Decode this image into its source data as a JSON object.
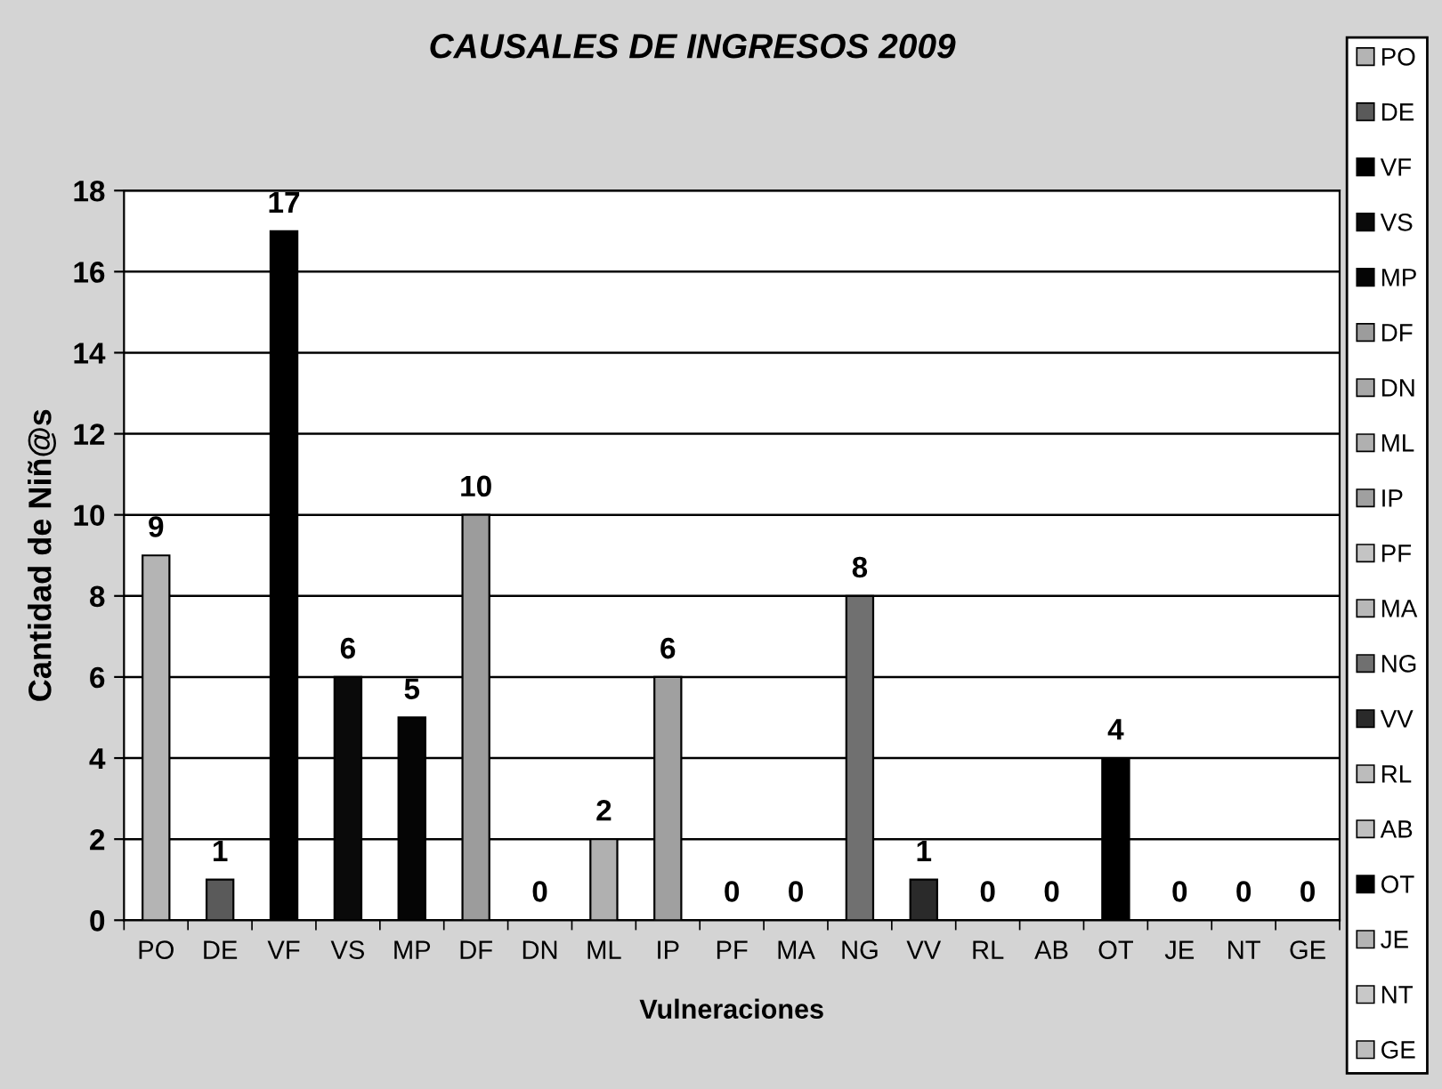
{
  "chart_data": {
    "type": "bar",
    "title": "CAUSALES DE INGRESOS 2009",
    "xlabel": "Vulneraciones",
    "ylabel": "Cantidad de Niñ@s",
    "categories": [
      "PO",
      "DE",
      "VF",
      "VS",
      "MP",
      "DF",
      "DN",
      "ML",
      "IP",
      "PF",
      "MA",
      "NG",
      "VV",
      "RL",
      "AB",
      "OT",
      "JE",
      "NT",
      "GE"
    ],
    "series": [
      {
        "name": "PO",
        "color": "#b4b4b4",
        "values": [
          9,
          null,
          null,
          null,
          null,
          null,
          null,
          null,
          null,
          null,
          null,
          null,
          null,
          null,
          null,
          null,
          null,
          null,
          null
        ]
      },
      {
        "name": "DE",
        "color": "#5a5a5a",
        "values": [
          null,
          1,
          null,
          null,
          null,
          null,
          null,
          null,
          null,
          null,
          null,
          null,
          null,
          null,
          null,
          null,
          null,
          null,
          null
        ]
      },
      {
        "name": "VF",
        "color": "#000000",
        "values": [
          null,
          null,
          17,
          null,
          null,
          null,
          null,
          null,
          null,
          null,
          null,
          null,
          null,
          null,
          null,
          null,
          null,
          null,
          null
        ]
      },
      {
        "name": "VS",
        "color": "#0a0a0a",
        "values": [
          null,
          null,
          null,
          6,
          null,
          null,
          null,
          null,
          null,
          null,
          null,
          null,
          null,
          null,
          null,
          null,
          null,
          null,
          null
        ]
      },
      {
        "name": "MP",
        "color": "#050505",
        "values": [
          null,
          null,
          null,
          null,
          5,
          null,
          null,
          null,
          null,
          null,
          null,
          null,
          null,
          null,
          null,
          null,
          null,
          null,
          null
        ]
      },
      {
        "name": "DF",
        "color": "#9c9c9c",
        "values": [
          null,
          null,
          null,
          null,
          null,
          10,
          null,
          null,
          null,
          null,
          null,
          null,
          null,
          null,
          null,
          null,
          null,
          null,
          null
        ]
      },
      {
        "name": "DN",
        "color": "#a8a8a8",
        "values": [
          null,
          null,
          null,
          null,
          null,
          null,
          0,
          null,
          null,
          null,
          null,
          null,
          null,
          null,
          null,
          null,
          null,
          null,
          null
        ]
      },
      {
        "name": "ML",
        "color": "#b0b0b0",
        "values": [
          null,
          null,
          null,
          null,
          null,
          null,
          null,
          2,
          null,
          null,
          null,
          null,
          null,
          null,
          null,
          null,
          null,
          null,
          null
        ]
      },
      {
        "name": "IP",
        "color": "#a0a0a0",
        "values": [
          null,
          null,
          null,
          null,
          null,
          null,
          null,
          null,
          6,
          null,
          null,
          null,
          null,
          null,
          null,
          null,
          null,
          null,
          null
        ]
      },
      {
        "name": "PF",
        "color": "#c4c4c4",
        "values": [
          null,
          null,
          null,
          null,
          null,
          null,
          null,
          null,
          null,
          0,
          null,
          null,
          null,
          null,
          null,
          null,
          null,
          null,
          null
        ]
      },
      {
        "name": "MA",
        "color": "#b8b8b8",
        "values": [
          null,
          null,
          null,
          null,
          null,
          null,
          null,
          null,
          null,
          null,
          0,
          null,
          null,
          null,
          null,
          null,
          null,
          null,
          null
        ]
      },
      {
        "name": "NG",
        "color": "#707070",
        "values": [
          null,
          null,
          null,
          null,
          null,
          null,
          null,
          null,
          null,
          null,
          null,
          8,
          null,
          null,
          null,
          null,
          null,
          null,
          null
        ]
      },
      {
        "name": "VV",
        "color": "#2a2a2a",
        "values": [
          null,
          null,
          null,
          null,
          null,
          null,
          null,
          null,
          null,
          null,
          null,
          null,
          1,
          null,
          null,
          null,
          null,
          null,
          null
        ]
      },
      {
        "name": "RL",
        "color": "#bcbcbc",
        "values": [
          null,
          null,
          null,
          null,
          null,
          null,
          null,
          null,
          null,
          null,
          null,
          null,
          null,
          0,
          null,
          null,
          null,
          null,
          null
        ]
      },
      {
        "name": "AB",
        "color": "#c0c0c0",
        "values": [
          null,
          null,
          null,
          null,
          null,
          null,
          null,
          null,
          null,
          null,
          null,
          null,
          null,
          null,
          0,
          null,
          null,
          null,
          null
        ]
      },
      {
        "name": "OT",
        "color": "#000000",
        "values": [
          null,
          null,
          null,
          null,
          null,
          null,
          null,
          null,
          null,
          null,
          null,
          null,
          null,
          null,
          null,
          4,
          null,
          null,
          null
        ]
      },
      {
        "name": "JE",
        "color": "#b4b4b4",
        "values": [
          null,
          null,
          null,
          null,
          null,
          null,
          null,
          null,
          null,
          null,
          null,
          null,
          null,
          null,
          null,
          null,
          0,
          null,
          null
        ]
      },
      {
        "name": "NT",
        "color": "#c8c8c8",
        "values": [
          null,
          null,
          null,
          null,
          null,
          null,
          null,
          null,
          null,
          null,
          null,
          null,
          null,
          null,
          null,
          null,
          null,
          0,
          null
        ]
      },
      {
        "name": "GE",
        "color": "#bdbdbd",
        "values": [
          null,
          null,
          null,
          null,
          null,
          null,
          null,
          null,
          null,
          null,
          null,
          null,
          null,
          null,
          null,
          null,
          null,
          null,
          0
        ]
      }
    ],
    "ylim": [
      0,
      18
    ],
    "yticks": [
      0,
      2,
      4,
      6,
      8,
      10,
      12,
      14,
      16,
      18
    ],
    "grid": "y",
    "legend": "right",
    "data_labels": true
  }
}
